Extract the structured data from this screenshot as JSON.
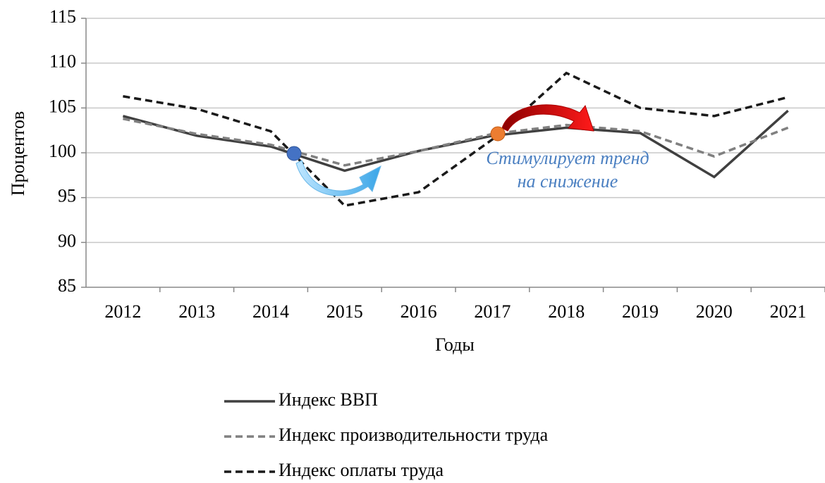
{
  "chart_data": {
    "type": "line",
    "x_label": "Годы",
    "y_label": "Процентов",
    "annotation": [
      "Стимулирует тренд",
      "на снижение"
    ],
    "categories": [
      "2012",
      "2013",
      "2014",
      "2015",
      "2016",
      "2017",
      "2018",
      "2019",
      "2020",
      "2021"
    ],
    "series": [
      {
        "name": "Индекс ВВП",
        "color": "#404040",
        "dash": "solid",
        "values": [
          104.1,
          101.9,
          100.7,
          98.0,
          100.2,
          101.9,
          102.8,
          102.2,
          97.3,
          104.7
        ]
      },
      {
        "name": "Индекс производительности труда",
        "color": "#808080",
        "dash": "dashed",
        "values": [
          103.8,
          102.1,
          100.9,
          98.6,
          100.2,
          102.1,
          103.1,
          102.4,
          99.6,
          102.8
        ]
      },
      {
        "name": "Индекс оплаты труда",
        "color": "#1a1a1a",
        "dash": "dashed",
        "values": [
          106.3,
          104.9,
          102.4,
          94.1,
          95.6,
          101.5,
          108.9,
          105.0,
          104.1,
          106.2
        ]
      }
    ],
    "ylim": [
      85,
      115
    ],
    "yticks": [
      85,
      90,
      95,
      100,
      105,
      110,
      115
    ],
    "grid": true
  }
}
